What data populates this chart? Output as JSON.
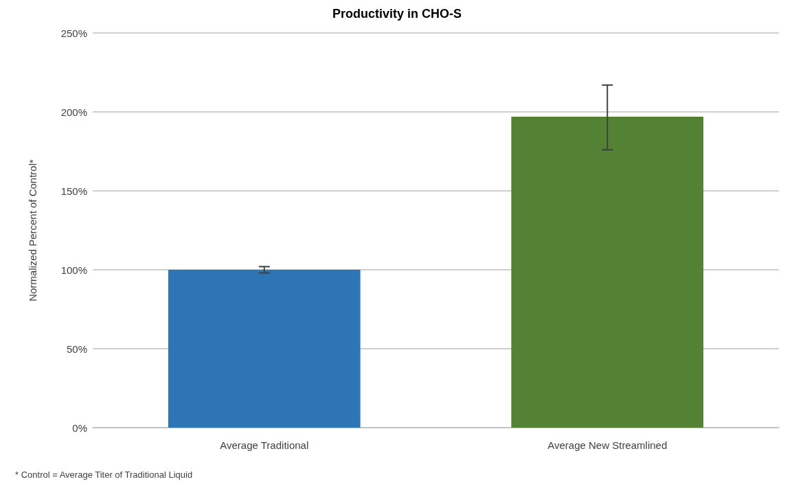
{
  "chart_data": {
    "type": "bar",
    "title": "Productivity in CHO-S",
    "ylabel": "Normalized Percent of Control*",
    "categories": [
      "Average Traditional",
      "Average New Streamlined"
    ],
    "values": [
      100,
      197
    ],
    "colors": [
      "#2e75b6",
      "#548235"
    ],
    "errors": [
      2,
      [
        176,
        217
      ]
    ],
    "ylim": [
      0,
      250
    ],
    "yticks": [
      {
        "value": 0,
        "label": "0%"
      },
      {
        "value": 50,
        "label": "50%"
      },
      {
        "value": 100,
        "label": "100%"
      },
      {
        "value": 150,
        "label": "150%"
      },
      {
        "value": 200,
        "label": "200%"
      },
      {
        "value": 250,
        "label": "250%"
      }
    ],
    "grid": "y",
    "annotations": [
      "* Control = Average Titer of Traditional Liquid"
    ]
  }
}
